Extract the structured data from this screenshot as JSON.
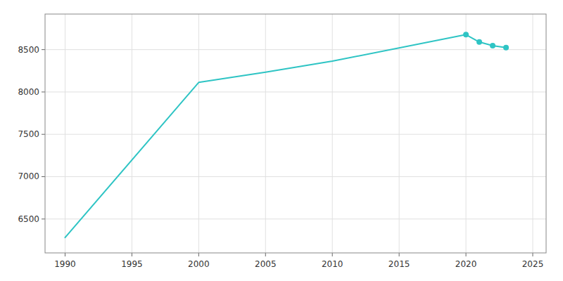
{
  "chart_data": {
    "type": "line",
    "x": [
      1990,
      2000,
      2005,
      2010,
      2020,
      2021,
      2022,
      2023
    ],
    "series": [
      {
        "type": "line",
        "color": "#2EC4C4",
        "values": [
          6281,
          8113,
          8234,
          8364,
          8677,
          8590,
          8547,
          8524
        ]
      },
      {
        "type": "scatter",
        "marker": "circle",
        "color": "#2EC4C4",
        "values": [
          null,
          null,
          null,
          null,
          8677,
          8590,
          8547,
          8524
        ]
      }
    ],
    "xlim": [
      1988.5,
      2026
    ],
    "ylim": [
      6100,
      8920
    ],
    "xticks": [
      1990,
      1995,
      2000,
      2005,
      2010,
      2015,
      2020,
      2025
    ],
    "yticks": [
      6500,
      7000,
      7500,
      8000,
      8500
    ],
    "grid": true
  }
}
